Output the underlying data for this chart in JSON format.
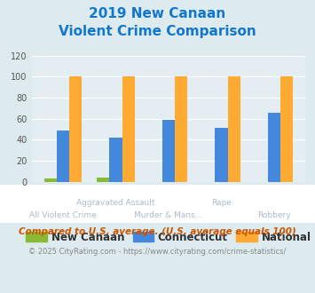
{
  "title_line1": "2019 New Canaan",
  "title_line2": "Violent Crime Comparison",
  "new_canaan": [
    3,
    4,
    0,
    0,
    0
  ],
  "connecticut": [
    49,
    42,
    59,
    51,
    66
  ],
  "national": [
    100,
    100,
    100,
    100,
    100
  ],
  "bar_colors": {
    "new_canaan": "#88bb33",
    "connecticut": "#4488dd",
    "national": "#ffaa33"
  },
  "ylim": [
    0,
    120
  ],
  "yticks": [
    0,
    20,
    40,
    60,
    80,
    100,
    120
  ],
  "legend_labels": [
    "New Canaan",
    "Connecticut",
    "National"
  ],
  "top_labels": [
    [
      1,
      "Aggravated Assault"
    ],
    [
      3,
      "Rape"
    ]
  ],
  "bottom_labels": [
    [
      0,
      "All Violent Crime"
    ],
    [
      2,
      "Murder & Mans..."
    ],
    [
      4,
      "Robbery"
    ]
  ],
  "footnote1": "Compared to U.S. average. (U.S. average equals 100)",
  "footnote2": "© 2025 CityRating.com - https://www.cityrating.com/crime-statistics/",
  "title_color": "#1177cc",
  "footnote1_color": "#cc5500",
  "footnote2_color": "#888888",
  "url_color": "#4488cc",
  "bg_color": "#ddeaee",
  "plot_bg_color": "#e4eef2",
  "label_color": "#aabbcc"
}
